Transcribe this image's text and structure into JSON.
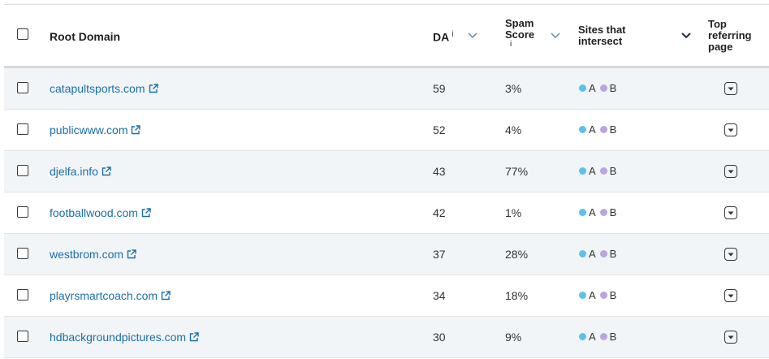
{
  "header": {
    "root_domain": "Root Domain",
    "da": "DA",
    "info": "i",
    "spam_line1": "Spam",
    "spam_line2": "Score",
    "sites_line1": "Sites that",
    "sites_line2": "intersect",
    "top_line1": "Top",
    "top_line2": "referring",
    "top_line3": "page"
  },
  "colors": {
    "link": "#1b6fa8",
    "dot_a": "#5bc0eb",
    "dot_b": "#b9a6e0",
    "row_shade": "#f1f5f8"
  },
  "legend": {
    "a": "A",
    "b": "B"
  },
  "rows": [
    {
      "domain": "catapultsports.com",
      "da": "59",
      "spam": "3%"
    },
    {
      "domain": "publicwww.com",
      "da": "52",
      "spam": "4%"
    },
    {
      "domain": "djelfa.info",
      "da": "43",
      "spam": "77%"
    },
    {
      "domain": "footballwood.com",
      "da": "42",
      "spam": "1%"
    },
    {
      "domain": "westbrom.com",
      "da": "37",
      "spam": "28%"
    },
    {
      "domain": "playrsmartcoach.com",
      "da": "34",
      "spam": "18%"
    },
    {
      "domain": "hdbackgroundpictures.com",
      "da": "30",
      "spam": "9%"
    }
  ]
}
